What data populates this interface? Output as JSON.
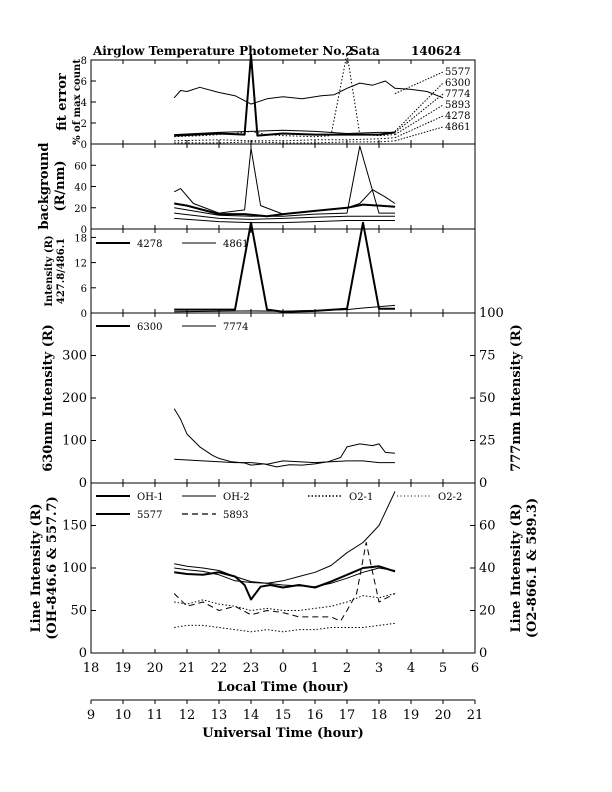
{
  "title": {
    "main": "Airglow Temperature Photometer No.2",
    "site": "Sata",
    "date": "140624"
  },
  "chart_data": [
    {
      "id": "fit_error",
      "type": "line",
      "ylabel": "fit error",
      "ylabel2": "% of max count",
      "ylim": [
        0,
        8
      ],
      "yticks": [
        0,
        2,
        4,
        6,
        8
      ],
      "xlim": [
        18,
        30
      ],
      "series": [
        {
          "name": "5577",
          "style": "solid",
          "width": 1,
          "x": [
            20.6,
            20.8,
            21.0,
            21.4,
            22.0,
            22.5,
            23.0,
            23.5,
            24.0,
            24.6,
            25.2,
            25.6,
            26.0,
            26.4,
            26.8,
            27.2,
            27.5,
            28.0,
            28.5,
            29.0
          ],
          "y": [
            4.4,
            5.1,
            5.0,
            5.4,
            4.9,
            4.6,
            3.8,
            4.3,
            4.5,
            4.3,
            4.6,
            4.7,
            5.3,
            5.8,
            5.6,
            6.0,
            5.3,
            5.2,
            5.0,
            4.4
          ]
        },
        {
          "name": "6300",
          "style": "solid",
          "width": 2,
          "x": [
            20.6,
            22.0,
            22.8,
            23.0,
            23.2,
            24.0,
            25.0,
            26.0,
            27.0,
            27.5
          ],
          "y": [
            0.8,
            1.0,
            0.9,
            8.5,
            0.8,
            1.0,
            0.9,
            0.9,
            0.9,
            1.1
          ]
        },
        {
          "name": "7774",
          "style": "solid",
          "width": 1,
          "x": [
            20.6,
            22.0,
            24.0,
            25.0,
            26.0,
            27.0,
            27.5
          ],
          "y": [
            0.9,
            1.1,
            1.3,
            1.2,
            1.0,
            1.1,
            1.1
          ]
        },
        {
          "name": "5893",
          "style": "dotted",
          "width": 1,
          "x": [
            20.6,
            21.5,
            22.5,
            23.0,
            23.5,
            24.0,
            25.0,
            25.5,
            26.0,
            26.4,
            27.0,
            27.5
          ],
          "y": [
            0.7,
            0.8,
            1.0,
            1.2,
            0.9,
            0.8,
            0.7,
            0.8,
            8.6,
            0.9,
            0.8,
            0.9
          ]
        },
        {
          "name": "4278",
          "style": "dotted",
          "width": 1,
          "x": [
            20.6,
            22.0,
            23.0,
            24.0,
            25.0,
            26.0,
            27.0,
            27.5
          ],
          "y": [
            0.3,
            0.4,
            0.3,
            0.3,
            0.4,
            0.4,
            0.5,
            0.6
          ]
        },
        {
          "name": "4861",
          "style": "dotted",
          "width": 1,
          "x": [
            20.6,
            22.0,
            23.0,
            24.0,
            25.0,
            26.0,
            27.0,
            27.5
          ],
          "y": [
            0.1,
            0.1,
            0.2,
            0.1,
            0.1,
            0.2,
            0.2,
            0.3
          ]
        }
      ],
      "label_targets": [
        {
          "name": "5577",
          "x": 27.5,
          "y": 4.8
        },
        {
          "name": "6300",
          "x": 27.5,
          "y": 1.2
        },
        {
          "name": "7774",
          "x": 27.5,
          "y": 1.1
        },
        {
          "name": "5893",
          "x": 27.5,
          "y": 0.9
        },
        {
          "name": "4278",
          "x": 27.5,
          "y": 0.6
        },
        {
          "name": "4861",
          "x": 27.5,
          "y": 0.3
        }
      ]
    },
    {
      "id": "background",
      "type": "line",
      "ylabel": "background",
      "ylabel2": "(R/nm)",
      "ylim": [
        0,
        80
      ],
      "yticks": [
        0,
        20,
        40,
        60
      ],
      "xlim": [
        18,
        30
      ],
      "series": [
        {
          "name": "s1",
          "style": "solid",
          "width": 1,
          "x": [
            20.6,
            20.8,
            21.2,
            22.0,
            22.8,
            23.0,
            23.3,
            24.0,
            25.0,
            26.0,
            26.4,
            26.8,
            27.2,
            27.5
          ],
          "y": [
            35,
            38,
            24,
            15,
            18,
            76,
            22,
            14,
            17,
            20,
            24,
            37,
            30,
            24
          ]
        },
        {
          "name": "s2",
          "style": "solid",
          "width": 2,
          "x": [
            20.6,
            21.0,
            22.0,
            22.8,
            23.5,
            24.0,
            25.0,
            26.0,
            26.5,
            27.0,
            27.5
          ],
          "y": [
            24,
            22,
            14,
            14,
            12,
            14,
            17,
            20,
            23,
            22,
            21
          ]
        },
        {
          "name": "s3",
          "style": "solid",
          "width": 1,
          "x": [
            20.6,
            22.0,
            23.0,
            24.0,
            25.0,
            26.0,
            26.4,
            27.0,
            27.5
          ],
          "y": [
            20,
            13,
            12,
            12,
            14,
            15,
            78,
            15,
            15
          ]
        },
        {
          "name": "s4",
          "style": "solid",
          "width": 1,
          "x": [
            20.6,
            22.0,
            23.0,
            24.0,
            25.0,
            26.0,
            27.0,
            27.5
          ],
          "y": [
            15,
            10,
            9,
            10,
            11,
            12,
            12,
            12
          ]
        },
        {
          "name": "s5",
          "style": "solid",
          "width": 1,
          "x": [
            20.6,
            22.0,
            23.0,
            24.0,
            25.0,
            26.0,
            27.0,
            27.5
          ],
          "y": [
            10,
            7,
            6,
            6,
            7,
            8,
            8,
            8
          ]
        }
      ]
    },
    {
      "id": "intensity_4278_4861",
      "type": "line",
      "ylabel": "Intensity (R)",
      "ylabel2": "427.8/486.1",
      "ylim": [
        0,
        20
      ],
      "yticks": [
        0,
        6,
        12,
        18
      ],
      "xlim": [
        18,
        30
      ],
      "series": [
        {
          "name": "4278",
          "style": "solid",
          "width": 2,
          "x": [
            20.6,
            22.5,
            23.0,
            23.5,
            24.0,
            25.0,
            26.0,
            26.5,
            27.0,
            27.5
          ],
          "y": [
            0.8,
            0.8,
            21.5,
            0.8,
            0.3,
            0.5,
            1.0,
            21.5,
            1.0,
            1.0
          ]
        },
        {
          "name": "4861",
          "style": "solid",
          "width": 1,
          "x": [
            20.6,
            22.0,
            23.0,
            24.0,
            25.0,
            26.0,
            26.5,
            27.0,
            27.5
          ],
          "y": [
            0.3,
            0.4,
            0.5,
            0.4,
            0.6,
            0.8,
            1.2,
            1.5,
            1.8
          ]
        }
      ]
    },
    {
      "id": "intensity_6300_7774",
      "type": "line",
      "ylabel": "630nm Intensity (R)",
      "ylabel_right": "777nm Intensity (R)",
      "ylim": [
        0,
        400
      ],
      "yticks": [
        0,
        100,
        200,
        300
      ],
      "ylim_right": [
        0,
        100
      ],
      "yticks_right": [
        0,
        25,
        50,
        75,
        100
      ],
      "xlim": [
        18,
        30
      ],
      "series": [
        {
          "name": "6300",
          "style": "solid",
          "width": 1,
          "x": [
            20.6,
            20.8,
            21.0,
            21.4,
            21.8,
            22.0,
            22.4,
            22.8,
            23.0,
            23.4,
            23.8,
            24.2,
            24.6,
            25.0,
            25.4,
            25.8,
            26.0,
            26.4,
            26.8,
            27.0,
            27.2,
            27.5
          ],
          "y": [
            175,
            150,
            115,
            85,
            65,
            58,
            50,
            47,
            42,
            45,
            38,
            43,
            42,
            45,
            50,
            60,
            85,
            92,
            88,
            92,
            72,
            70
          ]
        },
        {
          "name": "7774",
          "style": "solid",
          "width": 1,
          "axis": "right",
          "x": [
            20.6,
            21.5,
            22.5,
            23.0,
            23.5,
            24.0,
            25.0,
            26.0,
            26.5,
            27.0,
            27.5
          ],
          "y": [
            14,
            13,
            12,
            12,
            11,
            13,
            12,
            13,
            13,
            12,
            12
          ]
        }
      ]
    },
    {
      "id": "line_intensity",
      "type": "line",
      "ylabel": "Line Intensity (R)",
      "ylabel2": "(OH-846.6 & 557.7)",
      "ylabel_right": "Line Intensity (R)",
      "ylabel_right2": "(O2-866.1 & 589.3)",
      "ylim": [
        0,
        200
      ],
      "yticks": [
        0,
        50,
        100,
        150
      ],
      "ylim_right": [
        0,
        80
      ],
      "yticks_right": [
        0,
        20,
        40,
        60
      ],
      "xlim": [
        18,
        30
      ],
      "series": [
        {
          "name": "OH-1",
          "style": "solid",
          "width": 1,
          "x": [
            20.6,
            21.0,
            21.5,
            22.0,
            22.5,
            23.0,
            23.5,
            24.0,
            24.5,
            25.0,
            25.5,
            26.0,
            26.5,
            27.0,
            27.5
          ],
          "y": [
            100,
            98,
            96,
            92,
            85,
            83,
            82,
            85,
            90,
            95,
            103,
            118,
            130,
            150,
            190
          ]
        },
        {
          "name": "OH-2",
          "style": "solid",
          "width": 1,
          "x": [
            20.6,
            21.0,
            21.5,
            22.0,
            22.5,
            23.0,
            23.5,
            24.0,
            24.5,
            25.0,
            25.5,
            26.0,
            26.5,
            27.0,
            27.5
          ],
          "y": [
            105,
            102,
            100,
            97,
            90,
            84,
            82,
            80,
            79,
            78,
            82,
            88,
            95,
            100,
            97
          ]
        },
        {
          "name": "5577",
          "style": "solid",
          "width": 2,
          "x": [
            20.6,
            21.0,
            21.5,
            22.0,
            22.5,
            22.8,
            23.0,
            23.3,
            23.6,
            24.0,
            24.5,
            25.0,
            25.5,
            26.0,
            26.5,
            27.0,
            27.5
          ],
          "y": [
            95,
            93,
            92,
            95,
            90,
            80,
            63,
            78,
            80,
            77,
            80,
            77,
            84,
            92,
            100,
            102,
            96
          ]
        },
        {
          "name": "O2-1",
          "style": "dotted",
          "width": 1,
          "axis": "right",
          "x": [
            20.6,
            21.0,
            21.5,
            22.0,
            22.5,
            23.0,
            23.5,
            24.0,
            24.5,
            25.0,
            25.5,
            26.0,
            26.5,
            27.0,
            27.5
          ],
          "y": [
            24,
            23,
            25,
            23,
            22,
            20,
            21,
            20,
            20,
            21,
            22,
            24,
            27,
            26,
            28
          ]
        },
        {
          "name": "O2-2",
          "style": "dotted",
          "width": 1,
          "axis": "right",
          "x": [
            20.6,
            21.0,
            21.5,
            22.0,
            22.5,
            23.0,
            23.5,
            24.0,
            24.5,
            25.0,
            25.5,
            26.0,
            26.5,
            27.0,
            27.5
          ],
          "y": [
            12,
            13,
            13,
            12,
            11,
            10,
            11,
            10,
            11,
            11,
            12,
            12,
            12,
            13,
            14
          ]
        },
        {
          "name": "5893",
          "style": "dashed",
          "width": 1,
          "axis": "right",
          "x": [
            20.6,
            21.0,
            21.5,
            22.0,
            22.5,
            23.0,
            23.5,
            24.0,
            24.5,
            25.0,
            25.5,
            25.8,
            26.0,
            26.3,
            26.6,
            27.0,
            27.5
          ],
          "y": [
            28,
            22,
            24,
            20,
            22,
            18,
            20,
            19,
            17,
            17,
            17,
            15,
            20,
            28,
            52,
            24,
            28
          ]
        }
      ]
    }
  ],
  "x_axis_local": {
    "label": "Local Time (hour)",
    "tick_labels": [
      "18",
      "19",
      "20",
      "21",
      "22",
      "23",
      "0",
      "1",
      "2",
      "3",
      "4",
      "5",
      "6"
    ]
  },
  "x_axis_universal": {
    "label": "Universal Time (hour)",
    "tick_labels": [
      "9",
      "10",
      "11",
      "12",
      "13",
      "14",
      "15",
      "16",
      "17",
      "18",
      "19",
      "20",
      "21"
    ]
  },
  "legends": {
    "intensity_4278_4861": [
      "4278",
      "4861"
    ],
    "intensity_6300_7774": [
      "6300",
      "7774"
    ],
    "line_intensity": [
      "OH-1",
      "OH-2",
      "O2-1",
      "O2-2",
      "5577",
      "5893"
    ]
  }
}
